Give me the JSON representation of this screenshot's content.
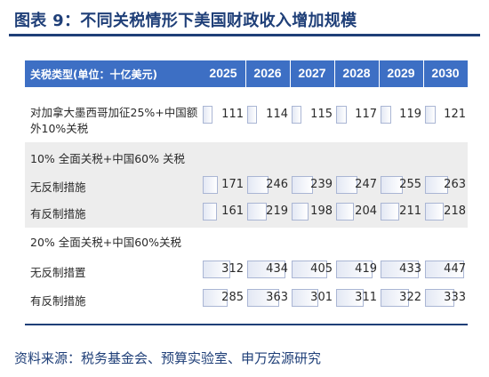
{
  "title": "图表 9：不同关税情形下美国财政收入增加规模",
  "table": {
    "header_label": "关税类型(单位：十亿美元)",
    "years": [
      "2025",
      "2026",
      "2027",
      "2028",
      "2029",
      "2030"
    ],
    "row1": {
      "label_line1": "对加拿大墨西哥加征25%+中国额",
      "label_line2": "外10%关税",
      "values": [
        "111",
        "114",
        "115",
        "117",
        "119",
        "121"
      ]
    },
    "group1": {
      "title": "10% 全面关税+中国60% 关税",
      "rows": [
        {
          "label": "无反制措施",
          "values": [
            "171",
            "246",
            "239",
            "247",
            "255",
            "263"
          ]
        },
        {
          "label": "有反制措施",
          "values": [
            "161",
            "219",
            "198",
            "204",
            "211",
            "218"
          ]
        }
      ]
    },
    "group2": {
      "title": "20% 全面关税+中国60%关税",
      "rows": [
        {
          "label": "无反制措置",
          "values": [
            "312",
            "434",
            "405",
            "419",
            "433",
            "447"
          ]
        },
        {
          "label": "有反制措施",
          "values": [
            "285",
            "363",
            "301",
            "311",
            "322",
            "333"
          ]
        }
      ]
    }
  },
  "source": "资料来源：税务基金会、预算实验室、申万宏源研究"
}
